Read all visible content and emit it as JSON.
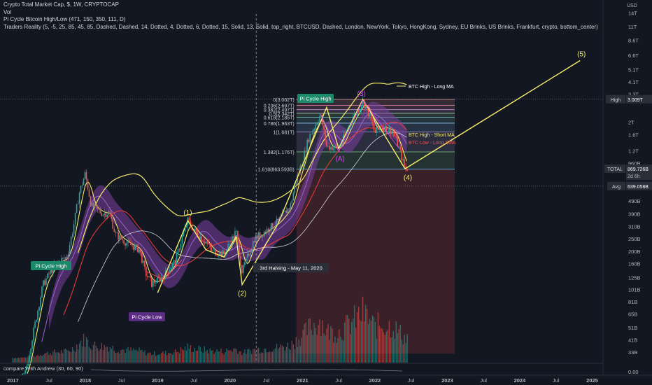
{
  "header": {
    "line1": "Crypto Total Market Cap, $, 1W, CRYPTOCAP",
    "line2": "Vol",
    "line3": "Pi Cycle Bitcoin High/Low (471, 150, 350, 111, D)",
    "line4": "Traders Reality (5, -5, 25, 85, 45, 85, Dashed, Dashed, 14, Dotted, 4, Dotted, 6, Dotted, 15, Solid, 13, Solid, top_right, BTCUSD, Dashed, London, NewYork, Tokyo, HongKong, Sydney, EU Brinks, US Brinks, Frankfurt, crypto, bottom_center)"
  },
  "price_axis": {
    "unit": "USD",
    "ticks": [
      "14T",
      "11T",
      "8.6T",
      "6.6T",
      "5.1T",
      "4.1T",
      "3.3T",
      "2T",
      "1.6T",
      "1.2T",
      "960B",
      "490B",
      "390B",
      "310B",
      "250B",
      "200B",
      "160B",
      "125B",
      "101B",
      "81B",
      "65B",
      "51B",
      "41B",
      "33B"
    ],
    "badges": [
      {
        "label": "High",
        "value": "3.009T",
        "color": "#131722",
        "border": "#d1d4dc"
      },
      {
        "label": "TOTAL",
        "value": "869.726B",
        "sub": "2d 6h",
        "color": "#131722",
        "border": "#d1d4dc"
      },
      {
        "label": "Avg",
        "value": "639.058B",
        "color": "#131722",
        "border": "#d1d4dc"
      }
    ]
  },
  "time_axis": {
    "ticks": [
      "2017",
      "Jul",
      "2018",
      "Jul",
      "2019",
      "Jul",
      "2020",
      "Jul",
      "2021",
      "Jul",
      "2022",
      "Jul",
      "2023",
      "Jul",
      "2024",
      "Jul",
      "2025"
    ]
  },
  "oscillator": {
    "label": "compare With Andrew (30, 60, 90)",
    "axis_value": "0.00"
  },
  "annotations": {
    "pi_high_1": "Pi Cycle High",
    "pi_high_2": "Pi Cycle High",
    "pi_low": "Pi Cycle Low",
    "halving": "3rd Halving - May 11, 2020",
    "btc_high_long": "BTC High - Long MA",
    "btc_high_short": "BTC High - Short MA",
    "btc_low_long": "BTC Low - Long SMA",
    "wave_1": "(1)",
    "wave_2": "(2)",
    "wave_3": "(3)",
    "wave_4": "(4)",
    "wave_5": "(5)",
    "wave_a": "(A)"
  },
  "fib_levels": [
    {
      "label": "0(3.002T)",
      "value": 3.002
    },
    {
      "label": "0.236(2.697T)",
      "value": 2.697
    },
    {
      "label": "0.382(2.497T)",
      "value": 2.497
    },
    {
      "label": "0.5(2.342T)",
      "value": 2.342
    },
    {
      "label": "0.618(2.185T)",
      "value": 2.185
    },
    {
      "label": "0.786(1.963T)",
      "value": 1.963
    },
    {
      "label": "1(1.681T)",
      "value": 1.681
    },
    {
      "label": "1.382(1.176T)",
      "value": 1.176
    },
    {
      "label": "1.618(863.593B)",
      "value": 0.8636
    }
  ],
  "colors": {
    "background": "#131722",
    "up": "#26a69a",
    "down": "#ef5350",
    "wave": "#f5ec6b",
    "long_ma": "#f5ec6b",
    "red_ma": "#e53935",
    "white_ma": "#d1d4dc",
    "purple_band": "#7b3fa0",
    "pi_label": "#1b8a6b",
    "pi_low_label": "#5b2c83"
  },
  "chart_data": {
    "type": "candlestick",
    "title": "Crypto Total Market Cap, $, 1W, CRYPTOCAP",
    "ylabel": "USD",
    "yscale": "log",
    "ylim_billions": [
      30,
      20000
    ],
    "x_start": "2017-01",
    "x_end": "2025-04",
    "price_billions": [
      [
        "2017-01",
        18
      ],
      [
        "2017-03",
        22
      ],
      [
        "2017-05",
        65
      ],
      [
        "2017-06",
        110
      ],
      [
        "2017-08",
        160
      ],
      [
        "2017-10",
        180
      ],
      [
        "2017-11",
        300
      ],
      [
        "2017-12",
        560
      ],
      [
        "2018-01",
        800
      ],
      [
        "2018-02",
        450
      ],
      [
        "2018-04",
        390
      ],
      [
        "2018-05",
        400
      ],
      [
        "2018-06",
        270
      ],
      [
        "2018-08",
        230
      ],
      [
        "2018-10",
        205
      ],
      [
        "2018-11",
        135
      ],
      [
        "2018-12",
        112
      ],
      [
        "2019-02",
        128
      ],
      [
        "2019-04",
        170
      ],
      [
        "2019-05",
        250
      ],
      [
        "2019-06",
        345
      ],
      [
        "2019-07",
        290
      ],
      [
        "2019-09",
        235
      ],
      [
        "2019-10",
        200
      ],
      [
        "2019-12",
        190
      ],
      [
        "2020-02",
        285
      ],
      [
        "2020-03",
        138
      ],
      [
        "2020-05",
        250
      ],
      [
        "2020-07",
        290
      ],
      [
        "2020-09",
        340
      ],
      [
        "2020-11",
        450
      ],
      [
        "2020-12",
        720
      ],
      [
        "2021-01",
        1000
      ],
      [
        "2021-02",
        1500
      ],
      [
        "2021-04",
        2300
      ],
      [
        "2021-05",
        1300
      ],
      [
        "2021-07",
        1250
      ],
      [
        "2021-09",
        2000
      ],
      [
        "2021-11",
        2900
      ],
      [
        "2021-12",
        2300
      ],
      [
        "2022-01",
        1650
      ],
      [
        "2022-02",
        1850
      ],
      [
        "2022-04",
        1700
      ],
      [
        "2022-05",
        1250
      ],
      [
        "2022-06",
        870
      ]
    ],
    "wave_points": [
      {
        "label": "(1)",
        "date": "2019-06",
        "value": 345
      },
      {
        "label": "(2)",
        "date": "2020-03",
        "value": 110
      },
      {
        "label": "(3)",
        "date": "2021-11",
        "value": 3000
      },
      {
        "label": "(4)",
        "date": "2022-06",
        "value": 870
      },
      {
        "label": "(5)",
        "date": "2024-11",
        "value": 6000
      }
    ],
    "halving_date": "2020-05-11",
    "fib_high_billions": 3002,
    "fib_low_billions": 863.593
  }
}
